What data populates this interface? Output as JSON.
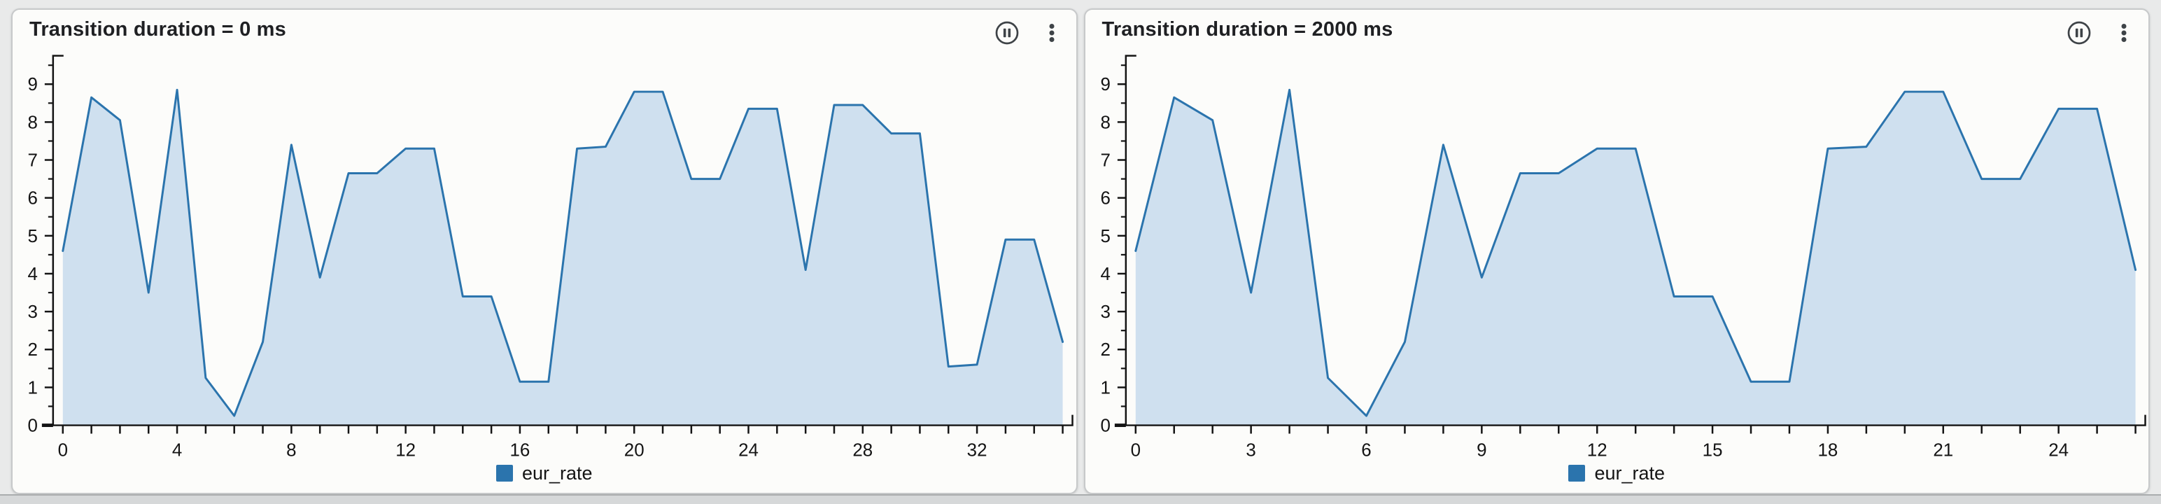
{
  "style": {
    "page_bg": "#e9eaea",
    "panel_bg": "#fcfcfa",
    "panel_border": "#c7c9ca",
    "accent": "#2b74ad",
    "area_fill": "#cfe0ef",
    "axis_color": "#141414",
    "icon_color": "#3e4347",
    "title_color": "#1f2023"
  },
  "panels": [
    {
      "title": "Transition duration = 0 ms",
      "icons": [
        "pause-circle",
        "kebab-menu"
      ],
      "legend": {
        "label": "eur_rate"
      }
    },
    {
      "title": "Transition duration = 2000 ms",
      "icons": [
        "pause-circle",
        "kebab-menu"
      ],
      "legend": {
        "label": "eur_rate"
      }
    }
  ],
  "chart_data": [
    {
      "type": "area",
      "title": "Transition duration = 0 ms",
      "series": [
        {
          "name": "eur_rate",
          "x_start": 0,
          "x_step": 1,
          "values": [
            4.6,
            8.65,
            8.05,
            3.5,
            8.85,
            1.25,
            0.25,
            2.2,
            7.4,
            3.9,
            6.65,
            6.65,
            7.3,
            7.3,
            3.4,
            3.4,
            1.15,
            1.15,
            7.3,
            7.35,
            8.8,
            8.8,
            6.5,
            6.5,
            8.35,
            8.35,
            4.1,
            8.45,
            8.45,
            7.7,
            7.7,
            1.55,
            1.6,
            4.9,
            4.9,
            2.2
          ]
        }
      ],
      "xlabel": "",
      "ylabel": "",
      "xlim": [
        0,
        35
      ],
      "ylim": [
        0,
        9.75
      ],
      "x_tick_labels": [
        0,
        4,
        8,
        12,
        16,
        20,
        24,
        28,
        32
      ],
      "x_minor_tick_step": 1,
      "y_tick_labels": [
        0,
        1,
        2,
        3,
        4,
        5,
        6,
        7,
        8,
        9
      ],
      "y_minor_tick_step": 0.5,
      "grid": false,
      "legend": {
        "label": "eur_rate",
        "position": "bottom-center"
      }
    },
    {
      "type": "area",
      "title": "Transition duration = 2000 ms",
      "series": [
        {
          "name": "eur_rate",
          "x_start": 0,
          "x_step": 1,
          "values": [
            4.6,
            8.65,
            8.05,
            3.5,
            8.85,
            1.25,
            0.25,
            2.2,
            7.4,
            3.9,
            6.65,
            6.65,
            7.3,
            7.3,
            3.4,
            3.4,
            1.15,
            1.15,
            7.3,
            7.35,
            8.8,
            8.8,
            6.5,
            6.5,
            8.35,
            8.35,
            4.1
          ]
        }
      ],
      "xlabel": "",
      "ylabel": "",
      "xlim": [
        0,
        26
      ],
      "ylim": [
        0,
        9.75
      ],
      "x_tick_labels": [
        0,
        3,
        6,
        9,
        12,
        15,
        18,
        21,
        24
      ],
      "x_minor_tick_step": 1,
      "y_tick_labels": [
        0,
        1,
        2,
        3,
        4,
        5,
        6,
        7,
        8,
        9
      ],
      "y_minor_tick_step": 0.5,
      "grid": false,
      "legend": {
        "label": "eur_rate",
        "position": "bottom-center"
      }
    }
  ]
}
